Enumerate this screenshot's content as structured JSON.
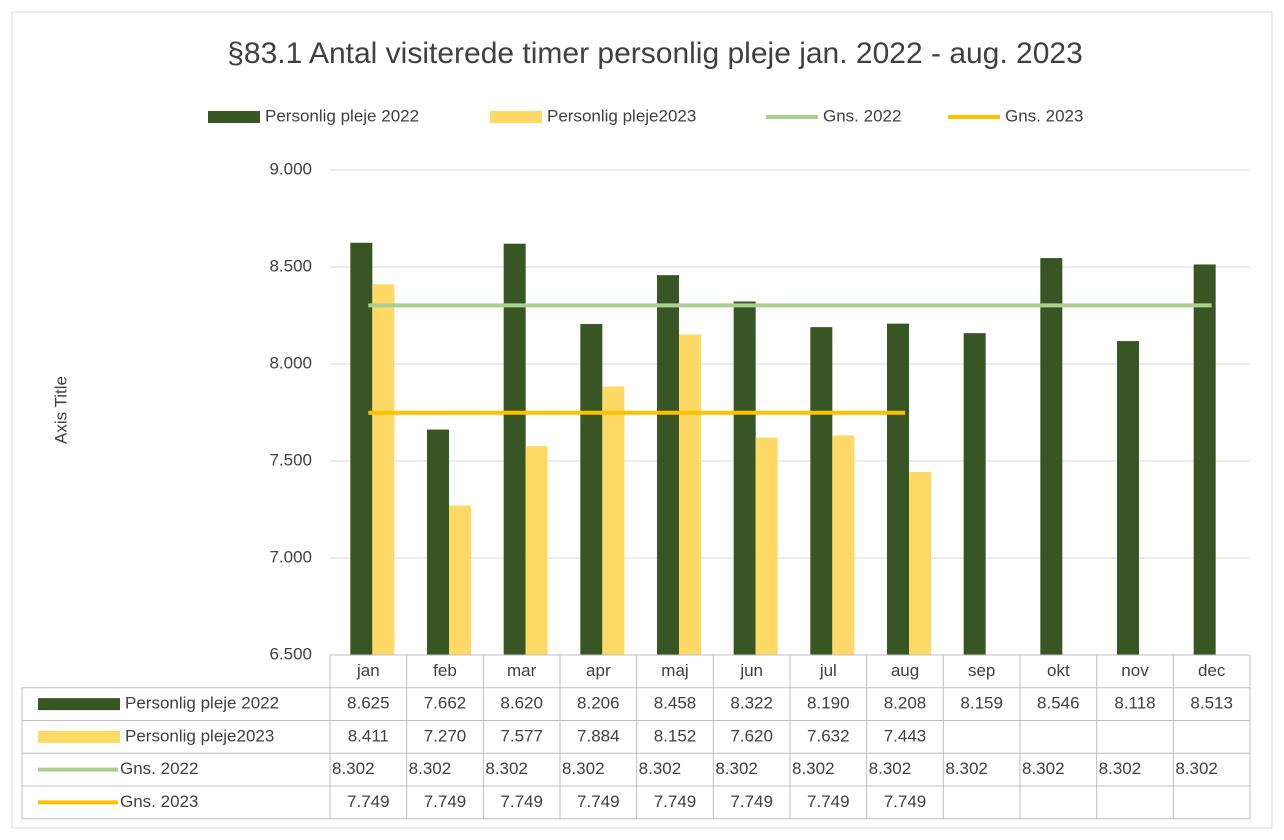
{
  "chart_data": {
    "type": "bar",
    "title": "§83.1 Antal visiterede timer personlig pleje jan. 2022 - aug. 2023",
    "y_axis_label": "Axis Title",
    "categories": [
      "jan",
      "feb",
      "mar",
      "apr",
      "maj",
      "jun",
      "jul",
      "aug",
      "sep",
      "okt",
      "nov",
      "dec"
    ],
    "ylim": [
      6500,
      9000
    ],
    "yticks": [
      {
        "value": 6500,
        "label": "6.500"
      },
      {
        "value": 7000,
        "label": "7.000"
      },
      {
        "value": 7500,
        "label": "7.500"
      },
      {
        "value": 8000,
        "label": "8.000"
      },
      {
        "value": 8500,
        "label": "8.500"
      },
      {
        "value": 9000,
        "label": "9.000"
      }
    ],
    "grid": true,
    "legend": "top",
    "data_table": true,
    "series": [
      {
        "name": "Personlig pleje 2022",
        "type": "bar",
        "color": "#375623",
        "values": [
          8625,
          7662,
          8620,
          8206,
          8458,
          8322,
          8190,
          8208,
          8159,
          8546,
          8118,
          8513
        ],
        "value_labels": [
          "8.625",
          "7.662",
          "8.620",
          "8.206",
          "8.458",
          "8.322",
          "8.190",
          "8.208",
          "8.159",
          "8.546",
          "8.118",
          "8.513"
        ]
      },
      {
        "name": "Personlig pleje2023",
        "type": "bar",
        "color": "#ffd966",
        "values": [
          8411,
          7270,
          7577,
          7884,
          8152,
          7620,
          7632,
          7443,
          null,
          null,
          null,
          null
        ],
        "value_labels": [
          "8.411",
          "7.270",
          "7.577",
          "7.884",
          "8.152",
          "7.620",
          "7.632",
          "7.443",
          null,
          null,
          null,
          null
        ]
      },
      {
        "name": "Gns. 2022",
        "type": "line",
        "color": "#a9d08e",
        "values": [
          8302,
          8302,
          8302,
          8302,
          8302,
          8302,
          8302,
          8302,
          8302,
          8302,
          8302,
          8302
        ],
        "value_labels": [
          "8.302",
          "8.302",
          "8.302",
          "8.302",
          "8.302",
          "8.302",
          "8.302",
          "8.302",
          "8.302",
          "8.302",
          "8.302",
          "8.302"
        ]
      },
      {
        "name": "Gns. 2023",
        "type": "line",
        "color": "#ffc000",
        "values": [
          7749,
          7749,
          7749,
          7749,
          7749,
          7749,
          7749,
          7749,
          null,
          null,
          null,
          null
        ],
        "value_labels": [
          "7.749",
          "7.749",
          "7.749",
          "7.749",
          "7.749",
          "7.749",
          "7.749",
          "7.749",
          null,
          null,
          null,
          null
        ]
      }
    ]
  }
}
